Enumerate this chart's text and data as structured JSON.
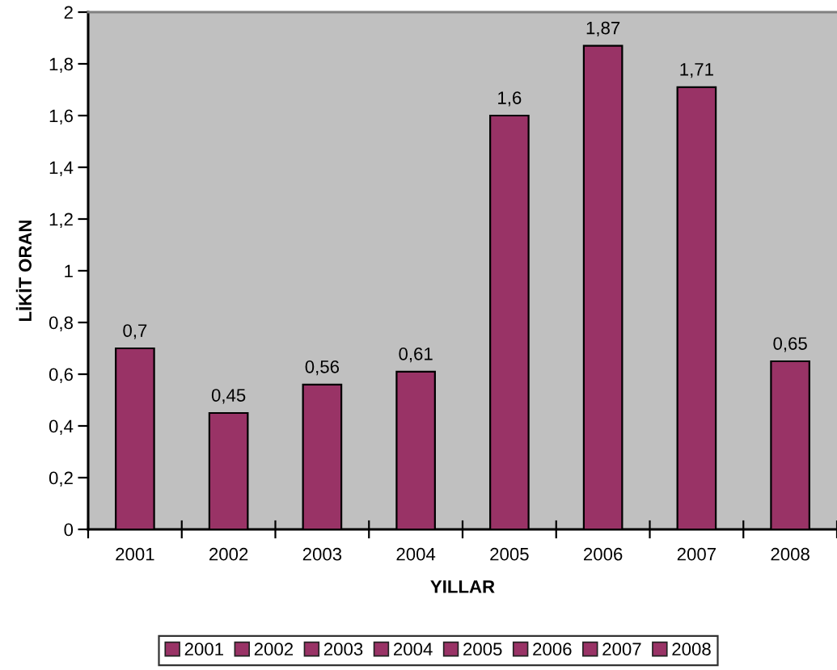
{
  "chart_data": {
    "type": "bar",
    "xlabel": "YILLAR",
    "ylabel": "LİKİT ORAN",
    "categories": [
      "2001",
      "2002",
      "2003",
      "2004",
      "2005",
      "2006",
      "2007",
      "2008"
    ],
    "stacked": true,
    "series": [
      {
        "name": "2001",
        "color": "#993366",
        "values": [
          0.7,
          null,
          null,
          null,
          null,
          null,
          null,
          null
        ],
        "value_labels": [
          "0,7",
          null,
          null,
          null,
          null,
          null,
          null,
          null
        ]
      },
      {
        "name": "2002",
        "color": "#993366",
        "values": [
          null,
          0.45,
          null,
          null,
          null,
          null,
          null,
          null
        ],
        "value_labels": [
          null,
          "0,45",
          null,
          null,
          null,
          null,
          null,
          null
        ]
      },
      {
        "name": "2003",
        "color": "#993366",
        "values": [
          null,
          null,
          0.56,
          null,
          null,
          null,
          null,
          null
        ],
        "value_labels": [
          null,
          null,
          "0,56",
          null,
          null,
          null,
          null,
          null
        ]
      },
      {
        "name": "2004",
        "color": "#993366",
        "values": [
          null,
          null,
          null,
          0.61,
          null,
          null,
          null,
          null
        ],
        "value_labels": [
          null,
          null,
          null,
          "0,61",
          null,
          null,
          null,
          null
        ]
      },
      {
        "name": "2005",
        "color": "#993366",
        "values": [
          null,
          null,
          null,
          null,
          1.6,
          null,
          null,
          null
        ],
        "value_labels": [
          null,
          null,
          null,
          null,
          "1,6",
          null,
          null,
          null
        ]
      },
      {
        "name": "2006",
        "color": "#993366",
        "values": [
          null,
          null,
          null,
          null,
          null,
          1.87,
          null,
          null
        ],
        "value_labels": [
          null,
          null,
          null,
          null,
          null,
          "1,87",
          null,
          null
        ]
      },
      {
        "name": "2007",
        "color": "#993366",
        "values": [
          null,
          null,
          null,
          null,
          null,
          null,
          1.71,
          null
        ],
        "value_labels": [
          null,
          null,
          null,
          null,
          null,
          null,
          "1,71",
          null
        ]
      },
      {
        "name": "2008",
        "color": "#993366",
        "values": [
          null,
          null,
          null,
          null,
          null,
          null,
          null,
          0.65
        ],
        "value_labels": [
          null,
          null,
          null,
          null,
          null,
          null,
          null,
          "0,65"
        ]
      }
    ],
    "ylim": [
      0,
      2
    ],
    "yticks": [
      0,
      {
        "value": 0.2,
        "label": "0,2"
      },
      {
        "value": 0.4,
        "label": "0,4"
      },
      {
        "value": 0.6,
        "label": "0,6"
      },
      {
        "value": 0.8,
        "label": "0,8"
      },
      1,
      {
        "value": 1.2,
        "label": "1,2"
      },
      {
        "value": 1.4,
        "label": "1,4"
      },
      {
        "value": 1.6,
        "label": "1,6"
      },
      {
        "value": 1.8,
        "label": "1,8"
      },
      2
    ],
    "legend": "bottom"
  }
}
